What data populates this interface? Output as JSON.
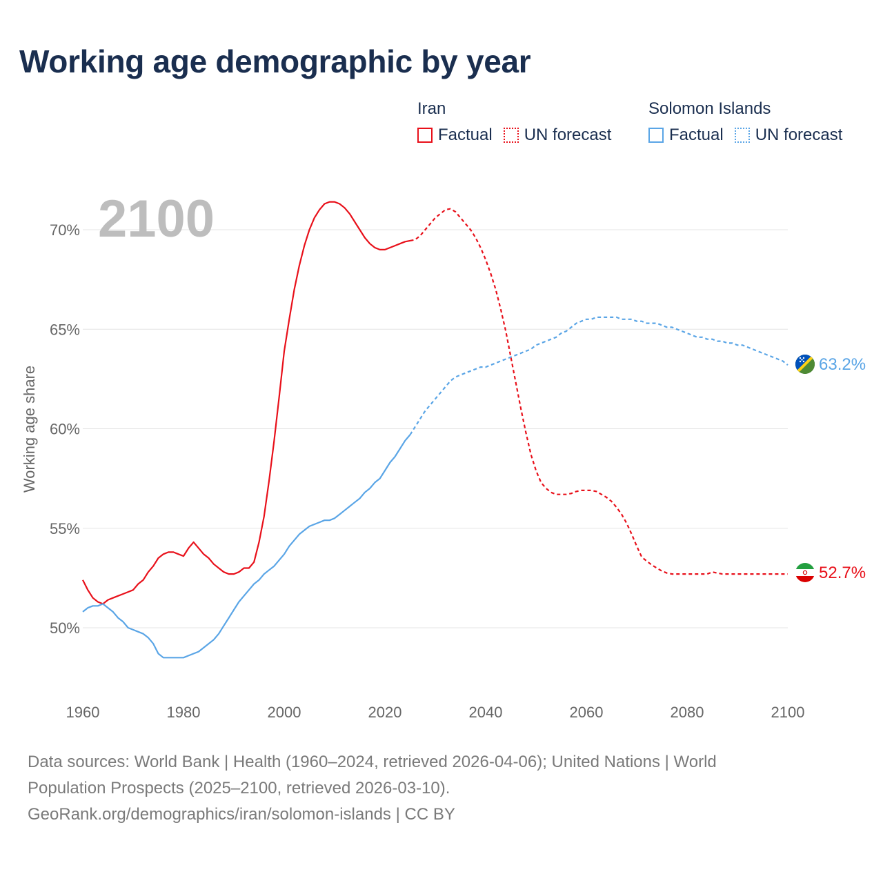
{
  "title": "Working age demographic by year",
  "legend": {
    "iran": {
      "country": "Iran",
      "factual": "Factual",
      "forecast": "UN forecast",
      "color": "#e8101a"
    },
    "solomon": {
      "country": "Solomon Islands",
      "factual": "Factual",
      "forecast": "UN forecast",
      "color": "#5aa5e6"
    }
  },
  "year_display": "2100",
  "footer": {
    "line1": "Data sources: World Bank | Health (1960–2024, retrieved 2026-04-06); United Nations | World",
    "line2": "Population Prospects (2025–2100, retrieved 2026-03-10).",
    "line3": "GeoRank.org/demographics/iran/solomon-islands | CC BY"
  },
  "chart_data": {
    "type": "line",
    "title": "Working age demographic by year",
    "xlabel": "",
    "ylabel": "Working age share",
    "xlim": [
      1960,
      2100
    ],
    "ylim": [
      46.5,
      73
    ],
    "x_ticks": [
      1960,
      1980,
      2000,
      2020,
      2040,
      2060,
      2080,
      2100
    ],
    "x_tick_labels": [
      "1960",
      "1980",
      "2000",
      "2020",
      "2040",
      "2060",
      "2080",
      "2100"
    ],
    "y_ticks": [
      50,
      55,
      60,
      65,
      70
    ],
    "y_tick_labels": [
      "50%",
      "55%",
      "60%",
      "65%",
      "70%"
    ],
    "factual_end_year": 2025,
    "series": [
      {
        "name": "Iran",
        "color": "#e8101a",
        "end_label": "52.7%",
        "points": [
          [
            1960,
            52.4
          ],
          [
            1961,
            51.9
          ],
          [
            1962,
            51.5
          ],
          [
            1963,
            51.3
          ],
          [
            1964,
            51.2
          ],
          [
            1965,
            51.4
          ],
          [
            1966,
            51.5
          ],
          [
            1967,
            51.6
          ],
          [
            1968,
            51.7
          ],
          [
            1969,
            51.8
          ],
          [
            1970,
            51.9
          ],
          [
            1971,
            52.2
          ],
          [
            1972,
            52.4
          ],
          [
            1973,
            52.8
          ],
          [
            1974,
            53.1
          ],
          [
            1975,
            53.5
          ],
          [
            1976,
            53.7
          ],
          [
            1977,
            53.8
          ],
          [
            1978,
            53.8
          ],
          [
            1979,
            53.7
          ],
          [
            1980,
            53.6
          ],
          [
            1981,
            54.0
          ],
          [
            1982,
            54.3
          ],
          [
            1983,
            54.0
          ],
          [
            1984,
            53.7
          ],
          [
            1985,
            53.5
          ],
          [
            1986,
            53.2
          ],
          [
            1987,
            53.0
          ],
          [
            1988,
            52.8
          ],
          [
            1989,
            52.7
          ],
          [
            1990,
            52.7
          ],
          [
            1991,
            52.8
          ],
          [
            1992,
            53.0
          ],
          [
            1993,
            53.0
          ],
          [
            1994,
            53.3
          ],
          [
            1995,
            54.3
          ],
          [
            1996,
            55.6
          ],
          [
            1997,
            57.4
          ],
          [
            1998,
            59.4
          ],
          [
            1999,
            61.6
          ],
          [
            2000,
            63.9
          ],
          [
            2001,
            65.5
          ],
          [
            2002,
            67.0
          ],
          [
            2003,
            68.2
          ],
          [
            2004,
            69.2
          ],
          [
            2005,
            70.0
          ],
          [
            2006,
            70.6
          ],
          [
            2007,
            71.0
          ],
          [
            2008,
            71.3
          ],
          [
            2009,
            71.4
          ],
          [
            2010,
            71.4
          ],
          [
            2011,
            71.3
          ],
          [
            2012,
            71.1
          ],
          [
            2013,
            70.8
          ],
          [
            2014,
            70.4
          ],
          [
            2015,
            70.0
          ],
          [
            2016,
            69.6
          ],
          [
            2017,
            69.3
          ],
          [
            2018,
            69.1
          ],
          [
            2019,
            69.0
          ],
          [
            2020,
            69.0
          ],
          [
            2021,
            69.1
          ],
          [
            2022,
            69.2
          ],
          [
            2023,
            69.3
          ],
          [
            2024,
            69.4
          ],
          [
            2025,
            69.45
          ],
          [
            2026,
            69.5
          ],
          [
            2027,
            69.7
          ],
          [
            2028,
            70.0
          ],
          [
            2029,
            70.3
          ],
          [
            2030,
            70.6
          ],
          [
            2031,
            70.8
          ],
          [
            2032,
            71.0
          ],
          [
            2033,
            71.05
          ],
          [
            2034,
            70.9
          ],
          [
            2035,
            70.6
          ],
          [
            2036,
            70.3
          ],
          [
            2037,
            70.0
          ],
          [
            2038,
            69.6
          ],
          [
            2039,
            69.1
          ],
          [
            2040,
            68.5
          ],
          [
            2041,
            67.8
          ],
          [
            2042,
            67.0
          ],
          [
            2043,
            66.0
          ],
          [
            2044,
            64.9
          ],
          [
            2045,
            63.6
          ],
          [
            2046,
            62.3
          ],
          [
            2047,
            61.0
          ],
          [
            2048,
            59.8
          ],
          [
            2049,
            58.7
          ],
          [
            2050,
            57.9
          ],
          [
            2051,
            57.3
          ],
          [
            2052,
            57.0
          ],
          [
            2053,
            56.8
          ],
          [
            2054,
            56.7
          ],
          [
            2055,
            56.7
          ],
          [
            2056,
            56.7
          ],
          [
            2057,
            56.75
          ],
          [
            2058,
            56.85
          ],
          [
            2059,
            56.9
          ],
          [
            2060,
            56.9
          ],
          [
            2061,
            56.9
          ],
          [
            2062,
            56.85
          ],
          [
            2063,
            56.7
          ],
          [
            2064,
            56.55
          ],
          [
            2065,
            56.35
          ],
          [
            2066,
            56.05
          ],
          [
            2067,
            55.7
          ],
          [
            2068,
            55.25
          ],
          [
            2069,
            54.7
          ],
          [
            2070,
            54.1
          ],
          [
            2071,
            53.55
          ],
          [
            2072,
            53.35
          ],
          [
            2073,
            53.15
          ],
          [
            2074,
            53.0
          ],
          [
            2075,
            52.85
          ],
          [
            2076,
            52.75
          ],
          [
            2077,
            52.7
          ],
          [
            2078,
            52.7
          ],
          [
            2079,
            52.7
          ],
          [
            2080,
            52.7
          ],
          [
            2081,
            52.7
          ],
          [
            2082,
            52.7
          ],
          [
            2083,
            52.7
          ],
          [
            2084,
            52.7
          ],
          [
            2085,
            52.8
          ],
          [
            2086,
            52.75
          ],
          [
            2087,
            52.7
          ],
          [
            2088,
            52.7
          ],
          [
            2089,
            52.7
          ],
          [
            2090,
            52.7
          ],
          [
            2100,
            52.7
          ]
        ]
      },
      {
        "name": "Solomon Islands",
        "color": "#5aa5e6",
        "end_label": "63.2%",
        "points": [
          [
            1960,
            50.8
          ],
          [
            1961,
            51.0
          ],
          [
            1962,
            51.1
          ],
          [
            1963,
            51.1
          ],
          [
            1964,
            51.2
          ],
          [
            1965,
            51.0
          ],
          [
            1966,
            50.8
          ],
          [
            1967,
            50.5
          ],
          [
            1968,
            50.3
          ],
          [
            1969,
            50.0
          ],
          [
            1970,
            49.9
          ],
          [
            1971,
            49.8
          ],
          [
            1972,
            49.7
          ],
          [
            1973,
            49.5
          ],
          [
            1974,
            49.2
          ],
          [
            1975,
            48.7
          ],
          [
            1976,
            48.5
          ],
          [
            1977,
            48.5
          ],
          [
            1978,
            48.5
          ],
          [
            1979,
            48.5
          ],
          [
            1980,
            48.5
          ],
          [
            1981,
            48.6
          ],
          [
            1982,
            48.7
          ],
          [
            1983,
            48.8
          ],
          [
            1984,
            49.0
          ],
          [
            1985,
            49.2
          ],
          [
            1986,
            49.4
          ],
          [
            1987,
            49.7
          ],
          [
            1988,
            50.1
          ],
          [
            1989,
            50.5
          ],
          [
            1990,
            50.9
          ],
          [
            1991,
            51.3
          ],
          [
            1992,
            51.6
          ],
          [
            1993,
            51.9
          ],
          [
            1994,
            52.2
          ],
          [
            1995,
            52.4
          ],
          [
            1996,
            52.7
          ],
          [
            1997,
            52.9
          ],
          [
            1998,
            53.1
          ],
          [
            1999,
            53.4
          ],
          [
            2000,
            53.7
          ],
          [
            2001,
            54.1
          ],
          [
            2002,
            54.4
          ],
          [
            2003,
            54.7
          ],
          [
            2004,
            54.9
          ],
          [
            2005,
            55.1
          ],
          [
            2006,
            55.2
          ],
          [
            2007,
            55.3
          ],
          [
            2008,
            55.4
          ],
          [
            2009,
            55.4
          ],
          [
            2010,
            55.5
          ],
          [
            2011,
            55.7
          ],
          [
            2012,
            55.9
          ],
          [
            2013,
            56.1
          ],
          [
            2014,
            56.3
          ],
          [
            2015,
            56.5
          ],
          [
            2016,
            56.8
          ],
          [
            2017,
            57.0
          ],
          [
            2018,
            57.3
          ],
          [
            2019,
            57.5
          ],
          [
            2020,
            57.9
          ],
          [
            2021,
            58.3
          ],
          [
            2022,
            58.6
          ],
          [
            2023,
            59.0
          ],
          [
            2024,
            59.4
          ],
          [
            2025,
            59.7
          ],
          [
            2026,
            60.1
          ],
          [
            2027,
            60.5
          ],
          [
            2028,
            60.9
          ],
          [
            2029,
            61.2
          ],
          [
            2030,
            61.5
          ],
          [
            2031,
            61.8
          ],
          [
            2032,
            62.1
          ],
          [
            2033,
            62.4
          ],
          [
            2034,
            62.6
          ],
          [
            2035,
            62.7
          ],
          [
            2036,
            62.8
          ],
          [
            2037,
            62.9
          ],
          [
            2038,
            63.0
          ],
          [
            2039,
            63.1
          ],
          [
            2040,
            63.1
          ],
          [
            2041,
            63.2
          ],
          [
            2042,
            63.3
          ],
          [
            2043,
            63.4
          ],
          [
            2044,
            63.5
          ],
          [
            2045,
            63.6
          ],
          [
            2046,
            63.7
          ],
          [
            2047,
            63.8
          ],
          [
            2048,
            63.9
          ],
          [
            2049,
            64.0
          ],
          [
            2050,
            64.2
          ],
          [
            2051,
            64.3
          ],
          [
            2052,
            64.4
          ],
          [
            2053,
            64.5
          ],
          [
            2054,
            64.6
          ],
          [
            2055,
            64.8
          ],
          [
            2056,
            64.9
          ],
          [
            2057,
            65.1
          ],
          [
            2058,
            65.3
          ],
          [
            2059,
            65.4
          ],
          [
            2060,
            65.5
          ],
          [
            2061,
            65.5
          ],
          [
            2062,
            65.6
          ],
          [
            2063,
            65.6
          ],
          [
            2064,
            65.6
          ],
          [
            2065,
            65.6
          ],
          [
            2066,
            65.6
          ],
          [
            2067,
            65.5
          ],
          [
            2068,
            65.5
          ],
          [
            2069,
            65.5
          ],
          [
            2070,
            65.4
          ],
          [
            2071,
            65.4
          ],
          [
            2072,
            65.3
          ],
          [
            2073,
            65.3
          ],
          [
            2074,
            65.3
          ],
          [
            2075,
            65.2
          ],
          [
            2076,
            65.1
          ],
          [
            2077,
            65.1
          ],
          [
            2078,
            65.0
          ],
          [
            2079,
            64.9
          ],
          [
            2080,
            64.8
          ],
          [
            2081,
            64.7
          ],
          [
            2082,
            64.6
          ],
          [
            2083,
            64.6
          ],
          [
            2084,
            64.5
          ],
          [
            2085,
            64.5
          ],
          [
            2086,
            64.4
          ],
          [
            2087,
            64.4
          ],
          [
            2088,
            64.3
          ],
          [
            2089,
            64.3
          ],
          [
            2090,
            64.2
          ],
          [
            2091,
            64.2
          ],
          [
            2092,
            64.1
          ],
          [
            2093,
            64.0
          ],
          [
            2094,
            63.9
          ],
          [
            2095,
            63.8
          ],
          [
            2096,
            63.7
          ],
          [
            2097,
            63.6
          ],
          [
            2098,
            63.5
          ],
          [
            2099,
            63.4
          ],
          [
            2100,
            63.2
          ]
        ]
      }
    ]
  }
}
